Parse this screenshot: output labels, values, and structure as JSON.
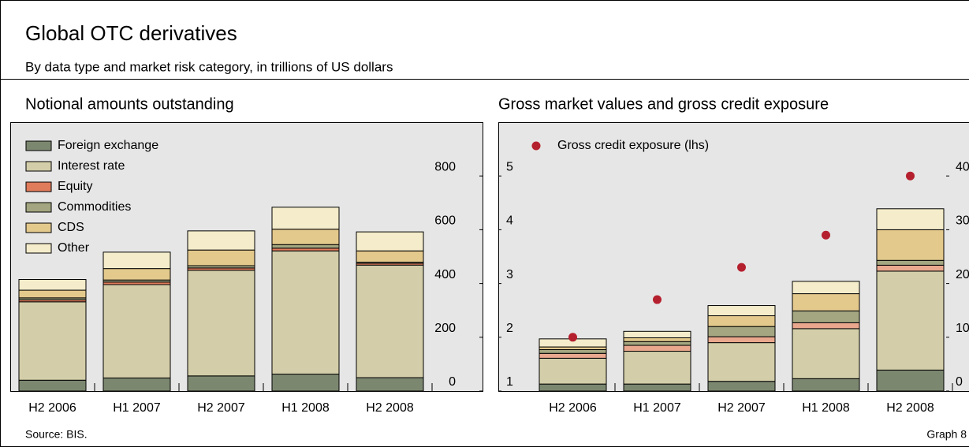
{
  "title": "Global OTC derivatives",
  "subtitle": "By data type and market risk category, in trillions of US dollars",
  "source": "Source: BIS.",
  "graph_label": "Graph 8",
  "chart_data": [
    {
      "type": "bar",
      "stacked": true,
      "title": "Notional amounts outstanding",
      "categories": [
        "H2 2006",
        "H1 2007",
        "H2 2007",
        "H1 2008",
        "H2 2008"
      ],
      "ylim": [
        0,
        1000
      ],
      "yticks": [
        0,
        200,
        400,
        600,
        800
      ],
      "series": [
        {
          "name": "Foreign exchange",
          "color": "#7c8770",
          "values": [
            40.3,
            48.6,
            56.2,
            63.0,
            49.8
          ]
        },
        {
          "name": "Interest rate",
          "color": "#d3cea9",
          "values": [
            291.6,
            347.3,
            393.1,
            458.3,
            418.7
          ]
        },
        {
          "name": "Equity",
          "color": "#e07b5c",
          "values": [
            7.5,
            9.5,
            8.5,
            10.2,
            6.5
          ]
        },
        {
          "name": "Commodities",
          "color": "#a3a680",
          "values": [
            7.1,
            7.6,
            8.5,
            13.2,
            4.4
          ]
        },
        {
          "name": "CDS",
          "color": "#e3c98c",
          "values": [
            28.7,
            42.6,
            58.2,
            57.3,
            41.9
          ]
        },
        {
          "name": "Other",
          "color": "#f4ecca",
          "values": [
            39.7,
            61.0,
            71.2,
            81.7,
            70.7
          ]
        }
      ]
    },
    {
      "type": "bar",
      "stacked": true,
      "title": "Gross market values and gross credit exposure",
      "categories": [
        "H2 2006",
        "H1 2007",
        "H2 2007",
        "H1 2008",
        "H2 2008"
      ],
      "ylim": [
        1,
        6
      ],
      "yticks": [
        1,
        2,
        3,
        4,
        5
      ],
      "y2lim": [
        0,
        50
      ],
      "y2ticks": [
        0,
        10,
        20,
        30,
        40
      ],
      "series": [
        {
          "color": "#7c8770",
          "axis": "y2",
          "values": [
            1.3,
            1.3,
            1.8,
            2.3,
            3.9
          ]
        },
        {
          "color": "#d3cea9",
          "axis": "y2",
          "values": [
            4.8,
            6.1,
            7.2,
            9.3,
            18.4
          ]
        },
        {
          "color": "#e9a88e",
          "axis": "y2",
          "values": [
            0.9,
            1.1,
            1.1,
            1.1,
            1.1
          ]
        },
        {
          "color": "#a3a680",
          "axis": "y2",
          "values": [
            0.7,
            0.7,
            1.9,
            2.2,
            0.9
          ]
        },
        {
          "color": "#e3c98c",
          "axis": "y2",
          "values": [
            0.5,
            0.7,
            2.0,
            3.2,
            5.7
          ]
        },
        {
          "color": "#f4ecca",
          "axis": "y2",
          "values": [
            1.5,
            1.2,
            1.9,
            2.3,
            3.9
          ]
        },
        {
          "name": "Gross credit exposure (lhs)",
          "type": "scatter",
          "color": "#b5202e",
          "values": [
            2.0,
            2.7,
            3.3,
            3.9,
            5.0
          ]
        }
      ]
    }
  ]
}
